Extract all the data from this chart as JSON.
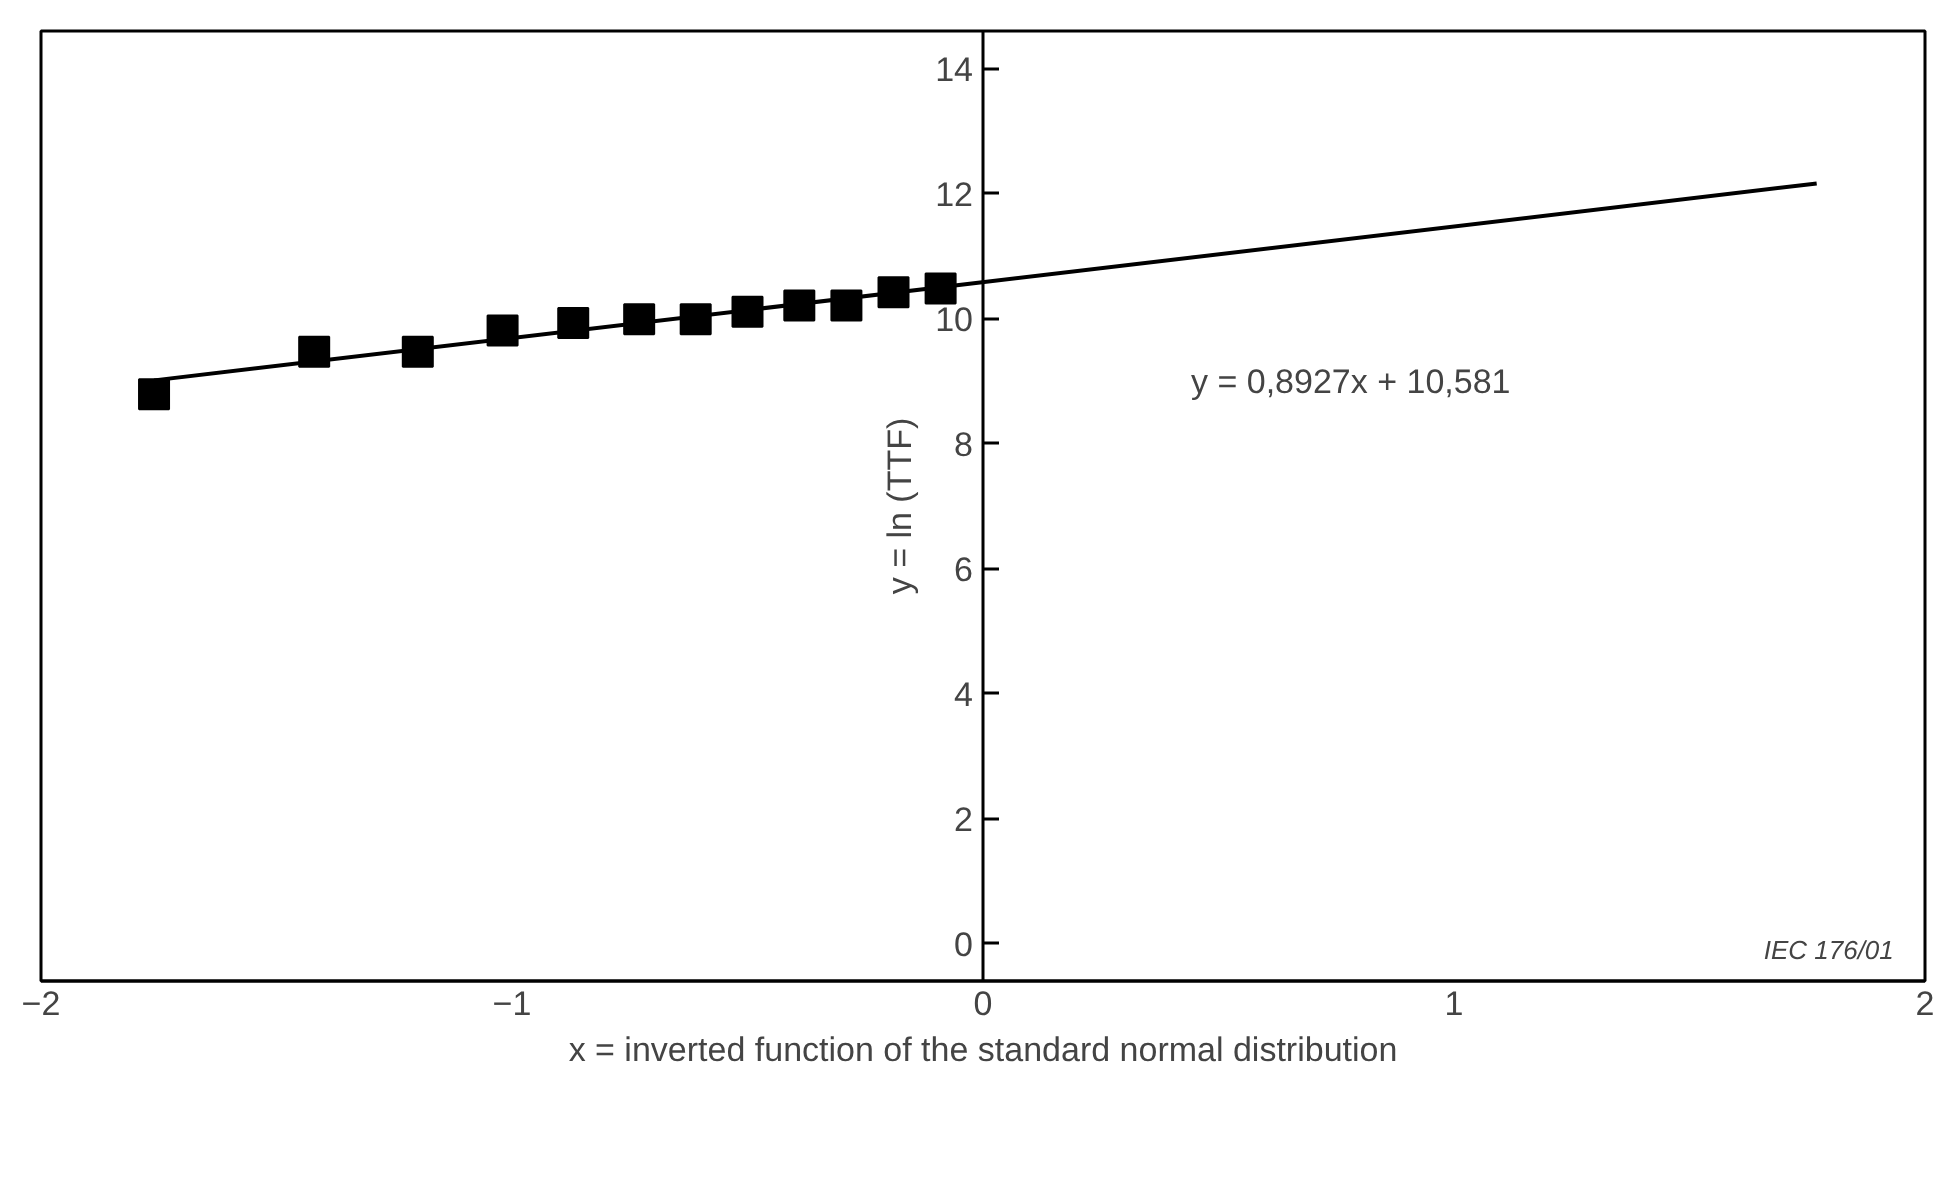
{
  "chart_data": {
    "type": "scatter",
    "xlabel": "x = inverted function of the standard normal distribution",
    "ylabel": "y = ln (TTF)",
    "series": [
      {
        "color": "#000000",
        "marker": "square",
        "x": [
          -1.76,
          -1.42,
          -1.2,
          -1.02,
          -0.87,
          -0.73,
          -0.61,
          -0.5,
          -0.39,
          -0.29,
          -0.19,
          -0.09
        ],
        "values": [
          8.79,
          9.47,
          9.47,
          9.81,
          9.93,
          9.99,
          9.99,
          10.11,
          10.21,
          10.21,
          10.42,
          10.48
        ]
      },
      {
        "type": "line",
        "color": "#000000",
        "marker": "none",
        "x": [
          -1.76,
          1.77
        ],
        "values": [
          9.01,
          12.16
        ]
      }
    ],
    "annotations": [
      "y = 0,8927x + 10,581",
      "IEC  176/01"
    ],
    "xlim": [
      -2,
      2
    ],
    "ylim": [
      -0.6,
      14.6
    ],
    "xticks": [
      {
        "value": -2,
        "label": "−2"
      },
      {
        "value": -1,
        "label": "−1"
      },
      0,
      1,
      2
    ],
    "yticks": [
      0,
      2,
      4,
      6,
      8,
      10,
      12,
      14
    ],
    "grid": false
  }
}
